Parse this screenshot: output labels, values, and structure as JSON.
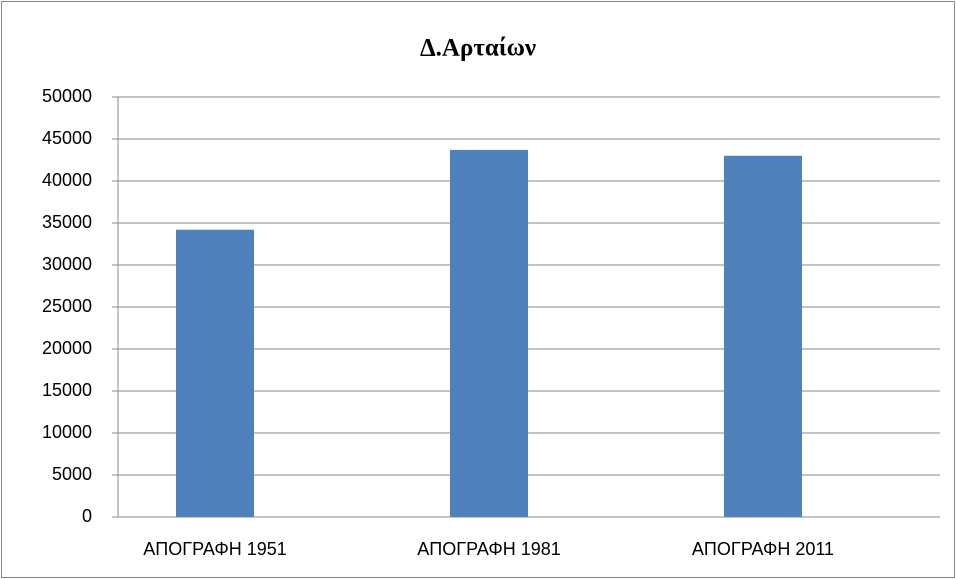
{
  "chart_data": {
    "type": "bar",
    "title": "Δ.Αρταίων",
    "categories": [
      "ΑΠΟΓΡΑΦΗ 1951",
      "ΑΠΟΓΡΑΦΗ 1981",
      "ΑΠΟΓΡΑΦΗ 2011"
    ],
    "values": [
      34200,
      43700,
      43000
    ],
    "color": "#4f81bd",
    "ylim": [
      0,
      50000
    ],
    "yticks": [
      0,
      5000,
      10000,
      15000,
      20000,
      25000,
      30000,
      35000,
      40000,
      45000,
      50000
    ],
    "grid": true
  }
}
